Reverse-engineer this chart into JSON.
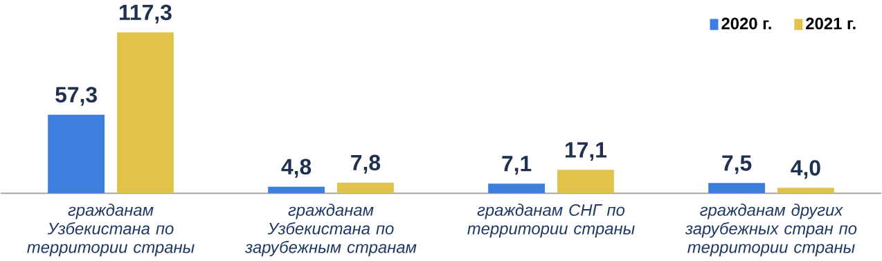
{
  "chart_data": {
    "type": "bar",
    "categories": [
      "гражданам Узбекистана по территории страны",
      "гражданам Узбекистана по зарубежным странам",
      "гражданам СНГ по территории страны",
      "гражданам других зарубежных стран по территории страны"
    ],
    "series": [
      {
        "name": "2020 г.",
        "color": "#3d7fe0",
        "values": [
          57.3,
          4.8,
          7.1,
          7.5
        ],
        "value_labels": [
          "57,3",
          "4,8",
          "7,1",
          "7,5"
        ]
      },
      {
        "name": "2021 г.",
        "color": "#e2c34a",
        "values": [
          117.3,
          7.8,
          17.1,
          4.0
        ],
        "value_labels": [
          "117,3",
          "7,8",
          "17,1",
          "4,0"
        ]
      }
    ],
    "legend": "top right"
  }
}
